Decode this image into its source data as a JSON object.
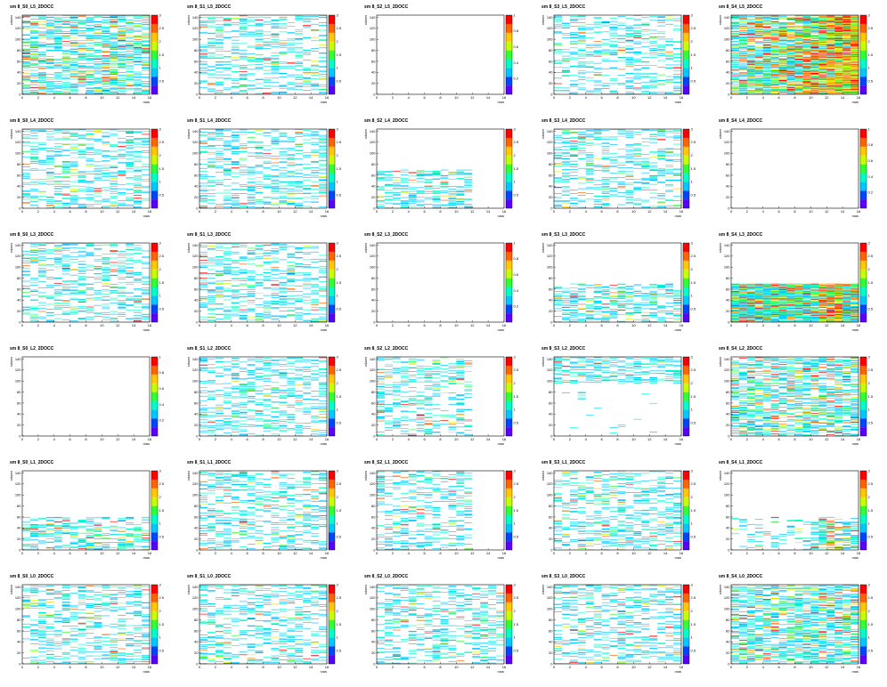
{
  "chart_data": {
    "type": "heatmap",
    "xlabel": "rows",
    "ylabel": "column",
    "xlim": [
      0,
      16
    ],
    "ylim": [
      0,
      144
    ],
    "x_ticks": [
      "0",
      "2",
      "4",
      "6",
      "8",
      "10",
      "12",
      "14",
      "16"
    ],
    "y_ticks": [
      "0",
      "20",
      "40",
      "60",
      "80",
      "100",
      "120",
      "140"
    ],
    "z_range": [
      0,
      3
    ],
    "z_ticks": [
      "0.5",
      "1",
      "1.5",
      "2",
      "2.5",
      "3"
    ],
    "palette": [
      "#5a00ff",
      "#0046ff",
      "#00c8ff",
      "#00ffc8",
      "#32ff32",
      "#c8ff00",
      "#ffc800",
      "#ff6400",
      "#ff0000"
    ],
    "panels": [
      {
        "title": "sm 8_S0_L5_2DOCC",
        "fill": "dense",
        "xmax": 16,
        "ymax": 144,
        "zmax": 3
      },
      {
        "title": "sm 8_S1_L5_2DOCC",
        "fill": "medium",
        "xmax": 16,
        "ymax": 144,
        "zmax": 3
      },
      {
        "title": "sm 8_S2_L5_2DOCC",
        "fill": "empty",
        "xmax": 0,
        "ymax": 0,
        "zmax": 1
      },
      {
        "title": "sm 8_S3_L5_2DOCC",
        "fill": "medium",
        "xmax": 16,
        "ymax": 144,
        "zmax": 3
      },
      {
        "title": "sm 8_S4_L5_2DOCC",
        "fill": "saturated",
        "xmax": 16,
        "ymax": 144,
        "zmax": 3
      },
      {
        "title": "sm 8_S0_L4_2DOCC",
        "fill": "medium",
        "xmax": 16,
        "ymax": 144,
        "zmax": 3
      },
      {
        "title": "sm 8_S1_L4_2DOCC",
        "fill": "medium",
        "xmax": 16,
        "ymax": 144,
        "zmax": 3
      },
      {
        "title": "sm 8_S2_L4_2DOCC",
        "fill": "sparse",
        "xmax": 12,
        "ymax": 70,
        "zmax": 3
      },
      {
        "title": "sm 8_S3_L4_2DOCC",
        "fill": "medium",
        "xmax": 16,
        "ymax": 144,
        "zmax": 3
      },
      {
        "title": "sm 8_S4_L4_2DOCC",
        "fill": "empty",
        "xmax": 0,
        "ymax": 0,
        "zmax": 1
      },
      {
        "title": "sm 8_S0_L3_2DOCC",
        "fill": "medium",
        "xmax": 16,
        "ymax": 144,
        "zmax": 3
      },
      {
        "title": "sm 8_S1_L3_2DOCC",
        "fill": "medium",
        "xmax": 16,
        "ymax": 144,
        "zmax": 3
      },
      {
        "title": "sm 8_S2_L3_2DOCC",
        "fill": "empty",
        "xmax": 0,
        "ymax": 0,
        "zmax": 1
      },
      {
        "title": "sm 8_S3_L3_2DOCC",
        "fill": "sparse",
        "xmax": 16,
        "ymax": 70,
        "zmax": 3
      },
      {
        "title": "sm 8_S4_L3_2DOCC",
        "fill": "hot",
        "xmax": 16,
        "ymax": 70,
        "zmax": 3
      },
      {
        "title": "sm 8_S0_L2_2DOCC",
        "fill": "empty",
        "xmax": 0,
        "ymax": 0,
        "zmax": 1
      },
      {
        "title": "sm 8_S1_L2_2DOCC",
        "fill": "medium",
        "xmax": 16,
        "ymax": 144,
        "zmax": 3
      },
      {
        "title": "sm 8_S2_L2_2DOCC",
        "fill": "medium",
        "xmax": 12,
        "ymax": 144,
        "zmax": 3
      },
      {
        "title": "sm 8_S3_L2_2DOCC",
        "fill": "top",
        "xmax": 16,
        "ymax": 144,
        "zmax": 3
      },
      {
        "title": "sm 8_S4_L2_2DOCC",
        "fill": "dense",
        "xmax": 16,
        "ymax": 144,
        "zmax": 3
      },
      {
        "title": "sm 8_S0_L1_2DOCC",
        "fill": "sparse",
        "xmax": 16,
        "ymax": 60,
        "zmax": 3
      },
      {
        "title": "sm 8_S1_L1_2DOCC",
        "fill": "medium",
        "xmax": 16,
        "ymax": 144,
        "zmax": 3
      },
      {
        "title": "sm 8_S2_L1_2DOCC",
        "fill": "medium",
        "xmax": 12,
        "ymax": 144,
        "zmax": 3
      },
      {
        "title": "sm 8_S3_L1_2DOCC",
        "fill": "medium",
        "xmax": 16,
        "ymax": 144,
        "zmax": 3
      },
      {
        "title": "sm 8_S4_L1_2DOCC",
        "fill": "lowhot",
        "xmax": 16,
        "ymax": 60,
        "zmax": 3
      },
      {
        "title": "sm 8_S0_L0_2DOCC",
        "fill": "medium",
        "xmax": 16,
        "ymax": 144,
        "zmax": 3
      },
      {
        "title": "sm 8_S1_L0_2DOCC",
        "fill": "medium",
        "xmax": 16,
        "ymax": 144,
        "zmax": 3
      },
      {
        "title": "sm 8_S2_L0_2DOCC",
        "fill": "medium",
        "xmax": 16,
        "ymax": 144,
        "zmax": 3
      },
      {
        "title": "sm 8_S3_L0_2DOCC",
        "fill": "medium",
        "xmax": 16,
        "ymax": 144,
        "zmax": 3
      },
      {
        "title": "sm 8_S4_L0_2DOCC",
        "fill": "dense",
        "xmax": 16,
        "ymax": 144,
        "zmax": 3
      }
    ]
  }
}
